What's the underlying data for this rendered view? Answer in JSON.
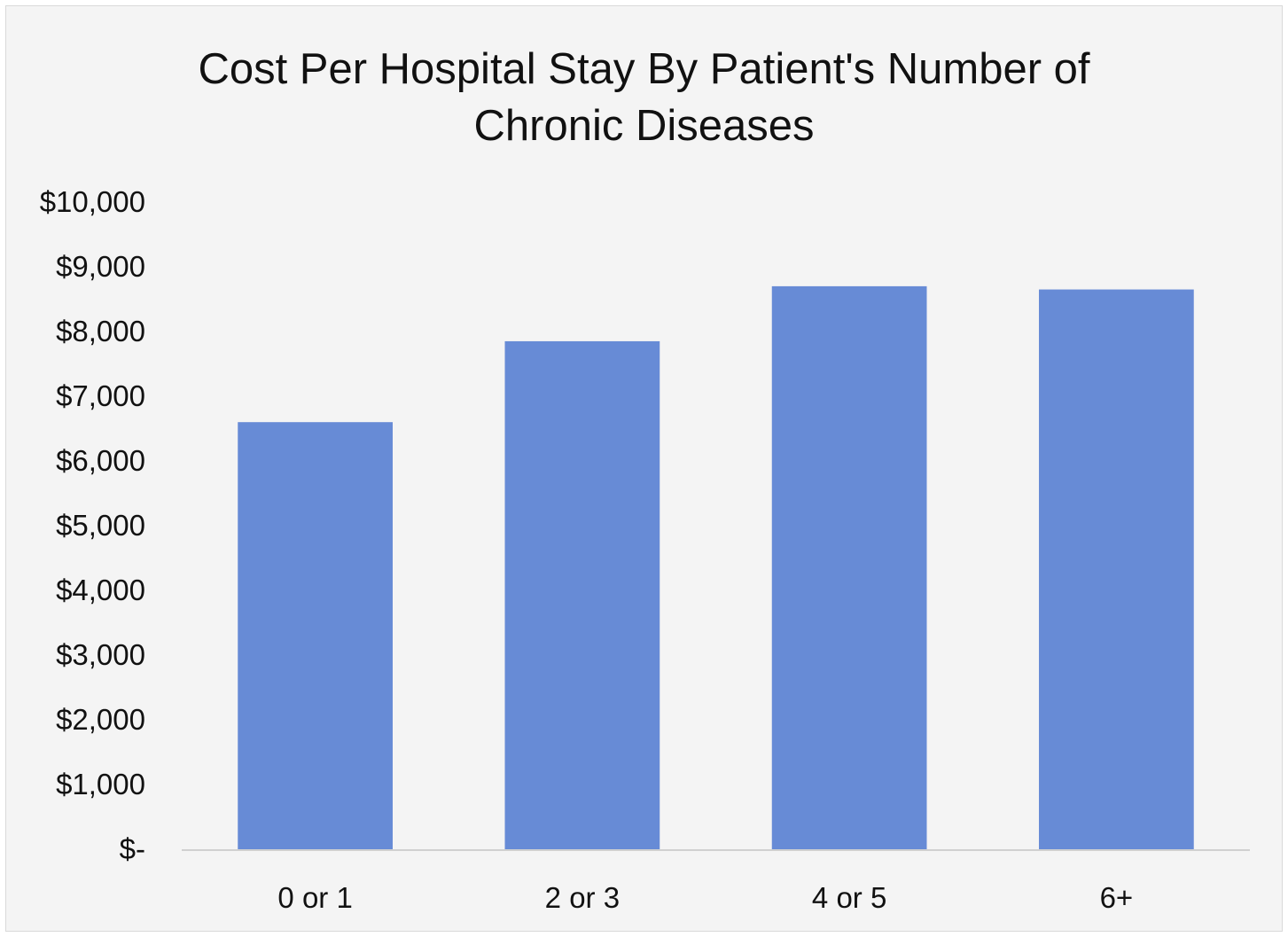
{
  "chart_data": {
    "type": "bar",
    "title": "Cost Per Hospital Stay By Patient's Number of Chronic Diseases",
    "categories": [
      "0 or 1",
      "2 or 3",
      "4 or 5",
      "6+"
    ],
    "values": [
      6600,
      7850,
      8700,
      8650
    ],
    "y_tick_labels": [
      "$-",
      "$1,000",
      "$2,000",
      "$3,000",
      "$4,000",
      "$5,000",
      "$6,000",
      "$7,000",
      "$8,000",
      "$9,000",
      "$10,000"
    ],
    "ylim": [
      0,
      10000
    ],
    "xlabel": "",
    "ylabel": "",
    "grid": false,
    "legend": "none",
    "bar_color": "#678bd6",
    "axis_line_color": "#d0d0d0",
    "background_color": "#f4f4f4"
  }
}
